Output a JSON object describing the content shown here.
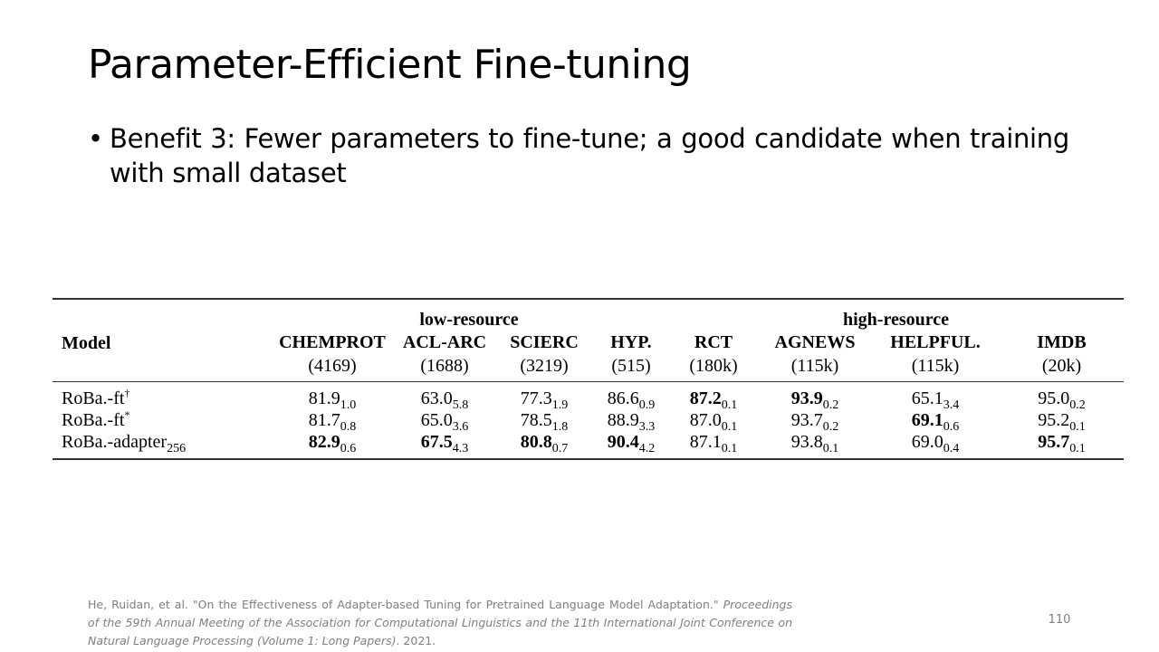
{
  "slide": {
    "title": "Parameter-Efficient Fine-tuning",
    "bullet_marker": "•",
    "bullet": "Benefit 3: Fewer parameters to fine-tune; a good candidate when training with small dataset",
    "page_number": "110"
  },
  "table": {
    "model_header": "Model",
    "groups": [
      "low-resource",
      "high-resource"
    ],
    "columns": [
      {
        "name": "CHEMPROT",
        "size": "(4169)"
      },
      {
        "name": "ACL-ARC",
        "size": "(1688)"
      },
      {
        "name": "SCIERC",
        "size": "(3219)"
      },
      {
        "name": "HYP.",
        "size": "(515)"
      },
      {
        "name": "RCT",
        "size": "(180k)"
      },
      {
        "name": "AGNEWS",
        "size": "(115k)"
      },
      {
        "name": "HELPFUL.",
        "size": "(115k)"
      },
      {
        "name": "IMDB",
        "size": "(20k)"
      }
    ],
    "rows": [
      {
        "model": "RoBa.-ft",
        "model_mark": "†",
        "cells": [
          {
            "v": "81.9",
            "s": "1.0",
            "bold": false
          },
          {
            "v": "63.0",
            "s": "5.8",
            "bold": false
          },
          {
            "v": "77.3",
            "s": "1.9",
            "bold": false
          },
          {
            "v": "86.6",
            "s": "0.9",
            "bold": false
          },
          {
            "v": "87.2",
            "s": "0.1",
            "bold": true
          },
          {
            "v": "93.9",
            "s": "0.2",
            "bold": true
          },
          {
            "v": "65.1",
            "s": "3.4",
            "bold": false
          },
          {
            "v": "95.0",
            "s": "0.2",
            "bold": false
          }
        ]
      },
      {
        "model": "RoBa.-ft",
        "model_mark": "*",
        "cells": [
          {
            "v": "81.7",
            "s": "0.8",
            "bold": false
          },
          {
            "v": "65.0",
            "s": "3.6",
            "bold": false
          },
          {
            "v": "78.5",
            "s": "1.8",
            "bold": false
          },
          {
            "v": "88.9",
            "s": "3.3",
            "bold": false
          },
          {
            "v": "87.0",
            "s": "0.1",
            "bold": false
          },
          {
            "v": "93.7",
            "s": "0.2",
            "bold": false
          },
          {
            "v": "69.1",
            "s": "0.6",
            "bold": true
          },
          {
            "v": "95.2",
            "s": "0.1",
            "bold": false
          }
        ]
      },
      {
        "model": "RoBa.-adapter",
        "model_sub": "256",
        "cells": [
          {
            "v": "82.9",
            "s": "0.6",
            "bold": true
          },
          {
            "v": "67.5",
            "s": "4.3",
            "bold": true
          },
          {
            "v": "80.8",
            "s": "0.7",
            "bold": true
          },
          {
            "v": "90.4",
            "s": "4.2",
            "bold": true
          },
          {
            "v": "87.1",
            "s": "0.1",
            "bold": false
          },
          {
            "v": "93.8",
            "s": "0.1",
            "bold": false
          },
          {
            "v": "69.0",
            "s": "0.4",
            "bold": false
          },
          {
            "v": "95.7",
            "s": "0.1",
            "bold": true
          }
        ]
      }
    ]
  },
  "citation": {
    "plain": "He, Ruidan, et al. \"On the Effectiveness of Adapter-based Tuning for Pretrained Language Model Adaptation.\" ",
    "italic": "Proceedings of the 59th Annual Meeting of the Association for Computational Linguistics and the 11th International Joint Conference on Natural Language Processing (Volume 1: Long Papers)",
    "tail": ". 2021."
  }
}
